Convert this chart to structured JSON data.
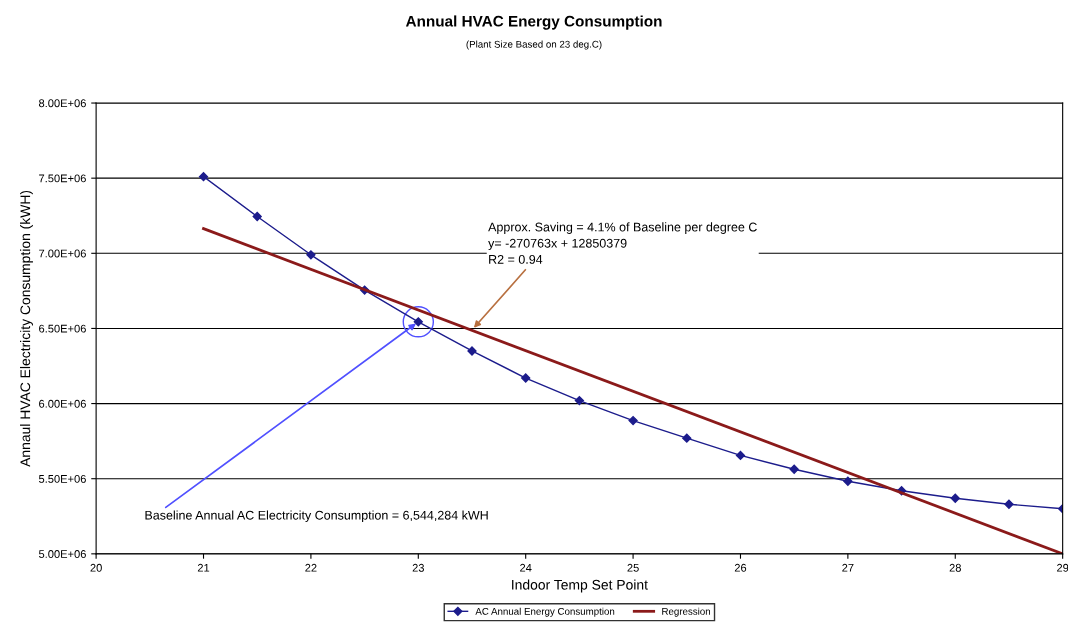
{
  "chart_data": {
    "type": "line",
    "title": "Annual HVAC Energy Consumption",
    "subtitle": "(Plant Size Based on 23 deg.C)",
    "xlabel": "Indoor Temp Set Point",
    "ylabel": "Annaul HVAC Electricity Consumption (kWH)",
    "series": [
      {
        "name": "AC Annual Energy Consumption",
        "color": "#1c1c8c",
        "marker": "diamond",
        "x": [
          21,
          21.5,
          22,
          22.5,
          23,
          23.5,
          24,
          24.5,
          25,
          25.5,
          26,
          26.5,
          27,
          27.5,
          28,
          28.5,
          29
        ],
        "values": [
          7510000,
          7245000,
          6990000,
          6755000,
          6544284,
          6350000,
          6170000,
          6020000,
          5887000,
          5770000,
          5655000,
          5563000,
          5483000,
          5420000,
          5370000,
          5330000,
          5300000
        ]
      },
      {
        "name": "Regression",
        "color": "#8b1a1a",
        "marker": "none",
        "x": [
          21,
          29
        ],
        "values": [
          7164000,
          5000000
        ]
      }
    ],
    "annotations": [
      {
        "text": "Approx. Saving = 4.1% of Baseline per degree C\ny= -270763x + 12850379\nR2 = 0.94",
        "x": 23.5,
        "y": 6490000
      },
      {
        "text": "Baseline Annual AC Electricity Consumption = 6,544,284 kWH",
        "x": 23,
        "y": 6544284
      }
    ],
    "xlim": [
      20,
      29
    ],
    "xticks": [
      20,
      21,
      22,
      23,
      24,
      25,
      26,
      27,
      28,
      29
    ],
    "ylim": [
      5000000,
      8000000
    ],
    "yticks": [
      {
        "value": 5000000,
        "label": "5.00E+06"
      },
      {
        "value": 5500000,
        "label": "5.50E+06"
      },
      {
        "value": 6000000,
        "label": "6.00E+06"
      },
      {
        "value": 6500000,
        "label": "6.50E+06"
      },
      {
        "value": 7000000,
        "label": "7.00E+06"
      },
      {
        "value": 7500000,
        "label": "7.50E+06"
      },
      {
        "value": 8000000,
        "label": "8.00E+06"
      }
    ],
    "grid": "y",
    "legend": "bottom",
    "line_style": "solid"
  }
}
